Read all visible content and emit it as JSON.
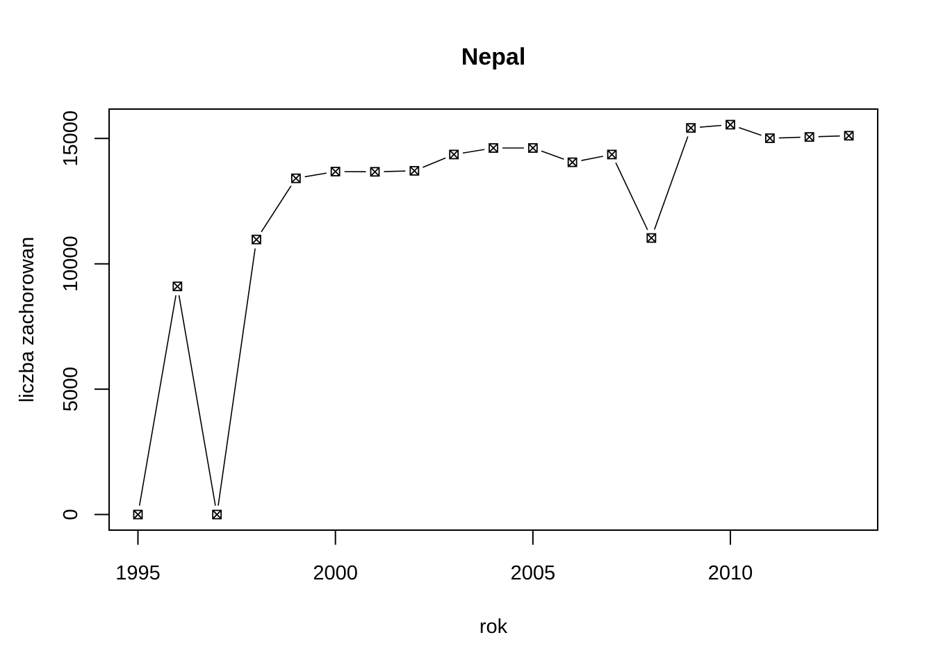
{
  "chart_data": {
    "type": "line",
    "title": "Nepal",
    "xlabel": "rok",
    "ylabel": "liczba zachorowan",
    "x": [
      1995,
      1996,
      1997,
      1998,
      1999,
      2000,
      2001,
      2002,
      2003,
      2004,
      2005,
      2006,
      2007,
      2008,
      2009,
      2010,
      2011,
      2012,
      2013
    ],
    "series": [
      {
        "values": [
          0,
          9100,
          0,
          10970,
          13410,
          13680,
          13670,
          13710,
          14360,
          14620,
          14620,
          14050,
          14360,
          11030,
          15420,
          15550,
          15010,
          15060,
          15110
        ]
      }
    ],
    "xticks": [
      "1995",
      "2000",
      "2005",
      "2010"
    ],
    "yticks": [
      "0",
      "5000",
      "10000",
      "15000"
    ],
    "xlim": [
      1994.27,
      2013.73
    ],
    "ylim": [
      -622,
      16172
    ],
    "grid": false,
    "marker": "boxed-x",
    "line_style": "solid, with gaps at markers",
    "color": "#000000"
  }
}
